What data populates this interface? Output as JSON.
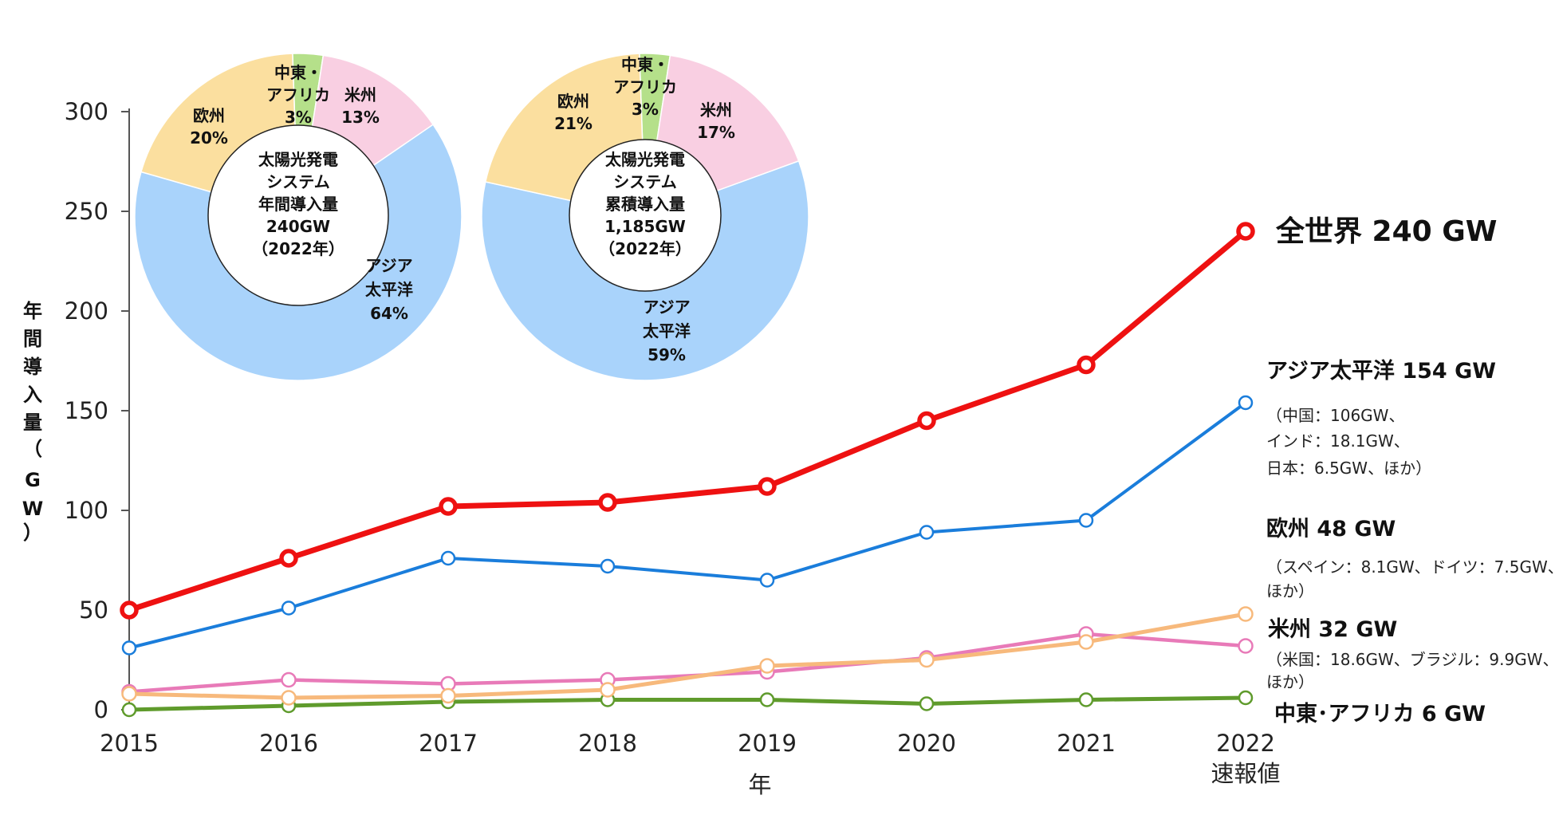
{
  "chart_data": {
    "type": "line",
    "x": [
      "2015",
      "2016",
      "2017",
      "2018",
      "2019",
      "2020",
      "2021",
      "2022"
    ],
    "x_tick_labels": [
      "2015",
      "2016",
      "2017",
      "2018",
      "2019",
      "2020",
      "2021",
      "2022"
    ],
    "last_x_sublabel": "速報値",
    "xlabel": "年",
    "ylabel_chars": [
      "年",
      "間",
      "導",
      "入",
      "量",
      "（",
      "G",
      "W",
      "）"
    ],
    "ylim": [
      0,
      300
    ],
    "y_ticks": [
      0,
      50,
      100,
      150,
      200,
      250,
      300
    ],
    "series": [
      {
        "key": "world",
        "name": "全世界 240 GW",
        "color": "#ee1111",
        "values": [
          50,
          76,
          102,
          104,
          112,
          145,
          173,
          240
        ],
        "notes": []
      },
      {
        "key": "asia",
        "name": "アジア太平洋 154 GW",
        "color": "#1a7ddb",
        "values": [
          31,
          51,
          76,
          72,
          65,
          89,
          95,
          154
        ],
        "notes": [
          "（中国：106GW、",
          "インド：18.1GW、",
          "日本：6.5GW、ほか）"
        ]
      },
      {
        "key": "europe",
        "name": "欧州 48 GW",
        "color": "#f7b97c",
        "values": [
          8,
          6,
          7,
          10,
          22,
          25,
          34,
          48
        ],
        "notes": [
          "（スペイン：8.1GW、ドイツ：7.5GW、",
          "ほか）"
        ]
      },
      {
        "key": "americas",
        "name": "米州 32 GW",
        "color": "#e87ab8",
        "values": [
          9,
          15,
          13,
          15,
          19,
          26,
          38,
          32
        ],
        "notes": [
          "（米国：18.6GW、ブラジル：9.9GW、",
          "ほか）"
        ]
      },
      {
        "key": "mea",
        "name": "中東･アフリカ 6 GW",
        "color": "#5f9b2c",
        "values": [
          0,
          2,
          4,
          5,
          5,
          3,
          5,
          6
        ],
        "notes": []
      }
    ],
    "pies": [
      {
        "key": "annual",
        "title_lines": [
          "太陽光発電",
          "システム",
          "年間導入量",
          "240GW",
          "（2022年）"
        ],
        "slices": [
          {
            "label_lines": [
              "中東・",
              "アフリカ",
              "3%"
            ],
            "value": 3,
            "color": "#b5e08a"
          },
          {
            "label_lines": [
              "米州",
              "13%"
            ],
            "value": 13,
            "color": "#f9cfe2"
          },
          {
            "label_lines": [
              "アジア",
              "太平洋",
              "64%"
            ],
            "value": 64,
            "color": "#a9d3fb"
          },
          {
            "label_lines": [
              "欧州",
              "20%"
            ],
            "value": 20,
            "color": "#fbdf9f"
          }
        ]
      },
      {
        "key": "cumulative",
        "title_lines": [
          "太陽光発電",
          "システム",
          "累積導入量",
          "1,185GW",
          "（2022年）"
        ],
        "slices": [
          {
            "label_lines": [
              "中東・",
              "アフリカ",
              "3%"
            ],
            "value": 3,
            "color": "#b5e08a"
          },
          {
            "label_lines": [
              "米州",
              "17%"
            ],
            "value": 17,
            "color": "#f9cfe2"
          },
          {
            "label_lines": [
              "アジア",
              "太平洋",
              "59%"
            ],
            "value": 59,
            "color": "#a9d3fb"
          },
          {
            "label_lines": [
              "欧州",
              "21%"
            ],
            "value": 21,
            "color": "#fbdf9f"
          }
        ]
      }
    ]
  }
}
